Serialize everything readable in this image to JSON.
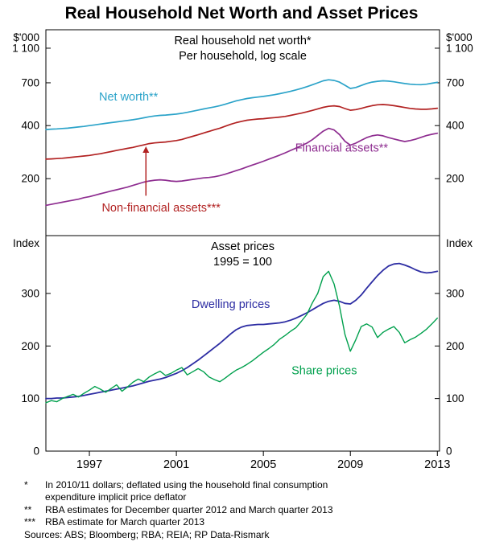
{
  "page_title": "Real Household Net Worth and Asset Prices",
  "chart_data": {
    "type": "line",
    "title": "Real Household Net Worth and Asset Prices",
    "x": {
      "start": 1995.0,
      "step": 0.25,
      "domain": [
        1995,
        2013.1
      ],
      "ticks": [
        1997,
        2001,
        2005,
        2009,
        2013
      ]
    },
    "xtick_labels": [
      "1997",
      "2001",
      "2005",
      "2009",
      "2013"
    ],
    "panels": [
      {
        "id": "net-worth",
        "title_lines": [
          "Real household net worth*",
          "Per household, log scale"
        ],
        "unit_left": "$'000",
        "unit_right": "$'000",
        "scale": "log",
        "ylim": [
          95,
          1400
        ],
        "yticks": [
          {
            "v": 200,
            "label": "200"
          },
          {
            "v": 400,
            "label": "400"
          },
          {
            "v": 700,
            "label": "700"
          },
          {
            "v": 1100,
            "label": "1 100"
          }
        ],
        "series": [
          {
            "name": "Net worth**",
            "color": "#2BA3C9",
            "width": 1.7,
            "values": [
              380,
              382,
              383,
              385,
              387,
              390,
              393,
              396,
              400,
              404,
              408,
              412,
              416,
              420,
              424,
              428,
              432,
              437,
              443,
              449,
              454,
              457,
              459,
              462,
              465,
              470,
              476,
              483,
              490,
              497,
              504,
              511,
              519,
              529,
              541,
              553,
              562,
              570,
              576,
              581,
              586,
              592,
              599,
              607,
              616,
              626,
              638,
              651,
              665,
              682,
              700,
              718,
              728,
              722,
              706,
              678,
              650,
              658,
              676,
              694,
              706,
              714,
              718,
              715,
              709,
              701,
              693,
              687,
              684,
              683,
              687,
              696,
              704
            ]
          },
          {
            "name": "Non-financial assets***",
            "color": "#B22222",
            "width": 1.7,
            "values": [
              258,
              259,
              260,
              261,
              263,
              265,
              267,
              269,
              271,
              274,
              277,
              281,
              285,
              289,
              293,
              297,
              301,
              306,
              311,
              316,
              319,
              321,
              323,
              326,
              329,
              334,
              341,
              348,
              355,
              363,
              371,
              379,
              387,
              397,
              407,
              416,
              423,
              429,
              433,
              436,
              438,
              441,
              444,
              447,
              451,
              457,
              464,
              471,
              479,
              488,
              498,
              508,
              515,
              518,
              513,
              500,
              489,
              493,
              501,
              511,
              519,
              525,
              527,
              524,
              519,
              513,
              507,
              501,
              497,
              495,
              495,
              498,
              502
            ]
          },
          {
            "name": "Financial assets**",
            "color": "#8E2D90",
            "width": 1.7,
            "values": [
              141,
              143,
              145,
              147,
              149,
              151,
              153,
              156,
              158,
              161,
              164,
              167,
              170,
              173,
              176,
              179,
              183,
              187,
              191,
              194,
              196,
              197,
              196,
              194,
              193,
              194,
              196,
              198,
              200,
              202,
              203,
              205,
              208,
              212,
              217,
              222,
              227,
              233,
              239,
              245,
              251,
              258,
              265,
              272,
              280,
              289,
              298,
              308,
              318,
              333,
              352,
              372,
              386,
              378,
              356,
              326,
              310,
              318,
              330,
              342,
              350,
              354,
              350,
              342,
              336,
              330,
              325,
              329,
              335,
              343,
              351,
              357,
              362
            ]
          }
        ],
        "labels": [
          {
            "text": "Net worth**",
            "color": "#2BA3C9",
            "x": 1998.8,
            "y": 555
          },
          {
            "text": "Financial assets**",
            "color": "#8E2D90",
            "x": 2008.6,
            "y": 285
          },
          {
            "text": "Non-financial assets***",
            "color": "#B22222",
            "x": 2000.3,
            "y": 130
          }
        ],
        "arrow": {
          "color": "#B22222",
          "x": 1999.6,
          "from_y": 160,
          "to_y": 305
        }
      },
      {
        "id": "asset-prices",
        "title_lines": [
          "Asset prices",
          "1995 = 100"
        ],
        "unit_left": "Index",
        "unit_right": "Index",
        "scale": "linear",
        "ylim": [
          0,
          410
        ],
        "yticks": [
          {
            "v": 0,
            "label": "0"
          },
          {
            "v": 100,
            "label": "100"
          },
          {
            "v": 200,
            "label": "200"
          },
          {
            "v": 300,
            "label": "300"
          }
        ],
        "series": [
          {
            "name": "Dwelling prices",
            "color": "#2D2DA3",
            "width": 1.8,
            "values": [
              100,
              100,
              101,
              101,
              102,
              103,
              104,
              106,
              108,
              110,
              112,
              114,
              116,
              118,
              120,
              122,
              124,
              127,
              130,
              133,
              135,
              137,
              140,
              144,
              148,
              153,
              159,
              166,
              173,
              181,
              189,
              197,
              205,
              214,
              223,
              231,
              236,
              239,
              240,
              241,
              241,
              242,
              243,
              244,
              246,
              249,
              253,
              258,
              263,
              269,
              275,
              281,
              285,
              287,
              285,
              281,
              280,
              287,
              297,
              310,
              322,
              334,
              344,
              352,
              356,
              357,
              354,
              350,
              345,
              341,
              339,
              340,
              342
            ]
          },
          {
            "name": "Share prices",
            "color": "#00A04D",
            "width": 1.4,
            "values": [
              92,
              96,
              94,
              100,
              104,
              108,
              103,
              110,
              116,
              123,
              118,
              112,
              119,
              126,
              114,
              122,
              131,
              137,
              132,
              141,
              147,
              152,
              144,
              148,
              154,
              159,
              145,
              151,
              157,
              151,
              141,
              136,
              132,
              139,
              147,
              154,
              159,
              165,
              172,
              180,
              188,
              195,
              203,
              213,
              220,
              228,
              235,
              247,
              260,
              282,
              300,
              332,
              342,
              318,
              276,
              222,
              190,
              212,
              237,
              242,
              236,
              216,
              226,
              232,
              237,
              226,
              206,
              212,
              217,
              224,
              232,
              242,
              253
            ]
          }
        ],
        "labels": [
          {
            "text": "Dwelling prices",
            "color": "#2D2DA3",
            "x": 2003.5,
            "y": 272
          },
          {
            "text": "Share prices",
            "color": "#00A04D",
            "x": 2007.8,
            "y": 146
          }
        ]
      }
    ]
  },
  "footnotes": [
    {
      "marker": "*",
      "text": "In 2010/11 dollars; deflated using the household final consumption expenditure implicit price deflator"
    },
    {
      "marker": "**",
      "text": "RBA estimates for December quarter 2012 and March quarter 2013"
    },
    {
      "marker": "***",
      "text": "RBA estimate for March quarter 2013"
    }
  ],
  "sources": "Sources: ABS; Bloomberg; RBA; REIA; RP Data-Rismark"
}
